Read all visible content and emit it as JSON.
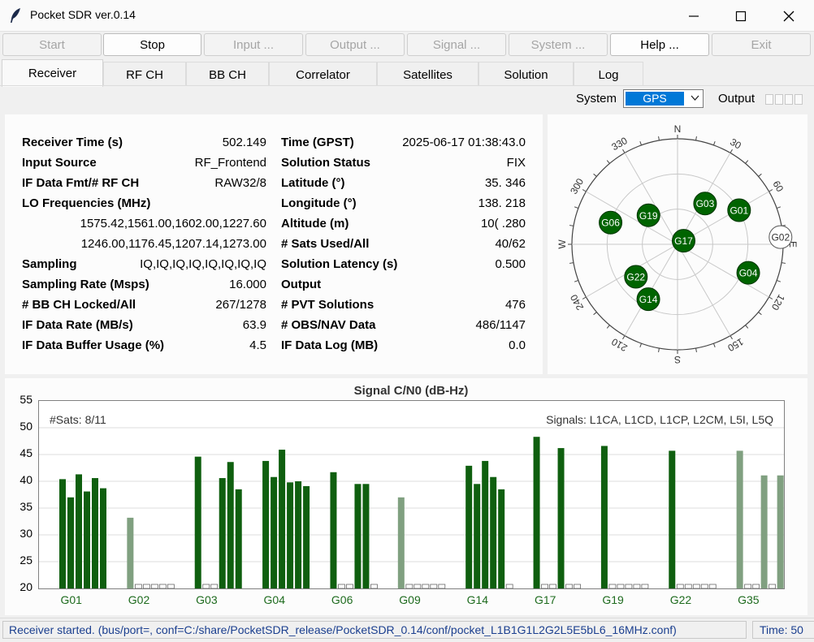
{
  "window": {
    "title": "Pocket SDR ver.0.14"
  },
  "toolbar": [
    {
      "label": "Start",
      "enabled": false
    },
    {
      "label": "Stop",
      "enabled": true
    },
    {
      "label": "Input ...",
      "enabled": false
    },
    {
      "label": "Output ...",
      "enabled": false
    },
    {
      "label": "Signal ...",
      "enabled": false
    },
    {
      "label": "System ...",
      "enabled": false
    },
    {
      "label": "Help ...",
      "enabled": true
    },
    {
      "label": "Exit",
      "enabled": false
    }
  ],
  "tabs": [
    "Receiver",
    "RF CH",
    "BB CH",
    "Correlator",
    "Satellites",
    "Solution",
    "Log"
  ],
  "active_tab": "Receiver",
  "system_bar": {
    "system_label": "System",
    "system_value": "GPS",
    "output_label": "Output"
  },
  "receiver": {
    "left": [
      {
        "label": "Receiver Time (s)",
        "value": "502.149"
      },
      {
        "label": "Input Source",
        "value": "RF_Frontend"
      },
      {
        "label": "IF Data Fmt/# RF CH",
        "value": "RAW32/8"
      },
      {
        "label": "LO Frequencies (MHz)",
        "value": ""
      },
      {
        "label": "",
        "value": "1575.42,1561.00,1602.00,1227.60"
      },
      {
        "label": "",
        "value": "1246.00,1176.45,1207.14,1273.00"
      },
      {
        "label": "Sampling",
        "value": "IQ,IQ,IQ,IQ,IQ,IQ,IQ,IQ"
      },
      {
        "label": "Sampling Rate (Msps)",
        "value": "16.000"
      },
      {
        "label": "# BB CH Locked/All",
        "value": "267/1278"
      },
      {
        "label": "IF Data Rate (MB/s)",
        "value": "63.9"
      },
      {
        "label": "IF Data Buffer Usage (%)",
        "value": "4.5"
      }
    ],
    "right": [
      {
        "label": "Time (GPST)",
        "value": "2025-06-17 01:38:43.0"
      },
      {
        "label": "Solution Status",
        "value": "FIX"
      },
      {
        "label": "Latitude (°)",
        "value": "35.  346"
      },
      {
        "label": "Longitude (°)",
        "value": "138.    218"
      },
      {
        "label": "Altitude (m)",
        "value": "10(  .280"
      },
      {
        "label": "# Sats Used/All",
        "value": "40/62"
      },
      {
        "label": "Solution Latency (s)",
        "value": "0.500"
      },
      {
        "label": "Output",
        "value": ""
      },
      {
        "label": "# PVT Solutions",
        "value": "476"
      },
      {
        "label": "# OBS/NAV Data",
        "value": "486/1147"
      },
      {
        "label": "IF Data Log (MB)",
        "value": "0.0"
      }
    ]
  },
  "skyplot": {
    "directions": [
      "N",
      "E",
      "S",
      "W"
    ],
    "azimuth_labels": [
      "30",
      "60",
      "120",
      "150",
      "210",
      "240",
      "300",
      "330"
    ],
    "satellites": [
      {
        "id": "G19",
        "az": 315,
        "el": 55,
        "used": true
      },
      {
        "id": "G03",
        "az": 34,
        "el": 48,
        "used": true
      },
      {
        "id": "G01",
        "az": 61,
        "el": 30,
        "used": true
      },
      {
        "id": "G06",
        "az": 288,
        "el": 30,
        "used": true
      },
      {
        "id": "G17",
        "az": 60,
        "el": 84,
        "used": true
      },
      {
        "id": "G02",
        "az": 86,
        "el": 2,
        "used": false
      },
      {
        "id": "G04",
        "az": 112,
        "el": 25,
        "used": true
      },
      {
        "id": "G22",
        "az": 232,
        "el": 45,
        "used": true
      },
      {
        "id": "G14",
        "az": 208,
        "el": 37,
        "used": true
      }
    ],
    "colors": {
      "used": "#006400",
      "unused": "#ffffff"
    }
  },
  "chart_data": {
    "type": "bar",
    "title": "Signal C/N0 (dB-Hz)",
    "ylim": [
      20,
      55
    ],
    "yticks": [
      20,
      25,
      30,
      35,
      40,
      45,
      50,
      55
    ],
    "sats_text": "#Sats: 8/11",
    "signals_text": "Signals:  L1CA, L1CD, L1CP, L2CM, L5I, L5Q",
    "signals": [
      "L1CA",
      "L1CD",
      "L1CP",
      "L2CM",
      "L5I",
      "L5Q"
    ],
    "categories": [
      "G01",
      "G02",
      "G03",
      "G04",
      "G06",
      "G09",
      "G14",
      "G17",
      "G19",
      "G22",
      "G35"
    ],
    "colors": {
      "used": "#0f5f0f",
      "unused": "#80a080",
      "empty": "#ffffff"
    },
    "satellites": [
      {
        "id": "G01",
        "used": true,
        "values": [
          40.4,
          37.0,
          41.3,
          38.1,
          40.6,
          38.7
        ]
      },
      {
        "id": "G02",
        "used": false,
        "values": [
          33.2,
          0,
          0,
          0,
          0,
          0
        ]
      },
      {
        "id": "G03",
        "used": true,
        "values": [
          44.6,
          0,
          0,
          40.6,
          43.6,
          38.5
        ]
      },
      {
        "id": "G04",
        "used": true,
        "values": [
          43.8,
          40.8,
          45.9,
          39.8,
          40.0,
          39.1
        ]
      },
      {
        "id": "G06",
        "used": true,
        "values": [
          41.7,
          0,
          0,
          39.5,
          39.5,
          0
        ]
      },
      {
        "id": "G09",
        "used": false,
        "values": [
          37.0,
          0,
          0,
          0,
          0,
          0
        ]
      },
      {
        "id": "G14",
        "used": true,
        "values": [
          42.9,
          39.5,
          43.8,
          40.8,
          38.5,
          0
        ]
      },
      {
        "id": "G17",
        "used": true,
        "values": [
          48.3,
          0,
          0,
          46.2,
          0,
          0
        ]
      },
      {
        "id": "G19",
        "used": true,
        "values": [
          46.6,
          0,
          0,
          0,
          0,
          0
        ]
      },
      {
        "id": "G22",
        "used": true,
        "values": [
          45.7,
          0,
          0,
          0,
          0,
          0
        ]
      },
      {
        "id": "G35",
        "used": false,
        "values": [
          45.7,
          0,
          0,
          41.1,
          0,
          41.1
        ]
      }
    ]
  },
  "status": {
    "message": "Receiver started. (bus/port=, conf=C:/share/PocketSDR_release/PocketSDR_0.14/conf/pocket_L1B1G1L2G2L5E5bL6_16MHz.conf)",
    "time": "Time: 50"
  }
}
